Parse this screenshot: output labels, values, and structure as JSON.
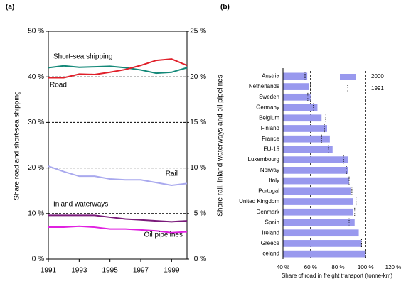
{
  "chart_data": [
    {
      "type": "line",
      "panel_label": "(a)",
      "x": [
        1991,
        1992,
        1993,
        1994,
        1995,
        1996,
        1997,
        1998,
        1999,
        2000
      ],
      "xlim": [
        1991,
        2000
      ],
      "xticks": [
        1991,
        1993,
        1995,
        1997,
        1999
      ],
      "ylim": [
        0,
        50
      ],
      "yticks": [
        {
          "value": 0,
          "label": "0 %"
        },
        {
          "value": 10,
          "label": "10 %"
        },
        {
          "value": 20,
          "label": "20 %"
        },
        {
          "value": 30,
          "label": "30 %"
        },
        {
          "value": 40,
          "label": "40 %"
        },
        {
          "value": 50,
          "label": "50 %"
        }
      ],
      "y2lim": [
        0,
        25
      ],
      "y2ticks": [
        {
          "value": 0,
          "label": "0 %"
        },
        {
          "value": 5,
          "label": "5 %"
        },
        {
          "value": 10,
          "label": "10 %"
        },
        {
          "value": 15,
          "label": "15 %"
        },
        {
          "value": 20,
          "label": "20 %"
        },
        {
          "value": 25,
          "label": "25 %"
        }
      ],
      "ylabel": "Share road and short-sea shipping",
      "y2label": "Share rail, inland waterways and oil pipelines",
      "grid": true,
      "series": [
        {
          "name": "Short-sea shipping",
          "color": "#138878",
          "values": [
            42.0,
            42.4,
            42.1,
            42.2,
            42.3,
            42.0,
            41.5,
            40.8,
            41.0,
            42.0
          ]
        },
        {
          "name": "Road",
          "color": "#e0202a",
          "values": [
            39.8,
            39.8,
            40.6,
            40.5,
            41.0,
            41.6,
            42.5,
            43.6,
            43.9,
            42.5
          ]
        },
        {
          "name": "Rail",
          "color": "#a9a9ee",
          "axis": "y2",
          "values": [
            10.2,
            9.6,
            9.1,
            9.1,
            8.8,
            8.7,
            8.7,
            8.4,
            8.1,
            8.3
          ]
        },
        {
          "name": "Inland waterways",
          "color": "#7a1a7a",
          "axis": "y2",
          "values": [
            4.8,
            4.8,
            4.8,
            4.8,
            4.6,
            4.4,
            4.3,
            4.2,
            4.1,
            4.2
          ]
        },
        {
          "name": "Oil pipelines",
          "color": "#e020e0",
          "axis": "y2",
          "values": [
            3.5,
            3.5,
            3.6,
            3.5,
            3.3,
            3.3,
            3.2,
            3.1,
            2.9,
            3.0
          ]
        }
      ]
    },
    {
      "type": "barh",
      "panel_label": "(b)",
      "categories": [
        "Austria",
        "Netherlands",
        "Sweden",
        "Germany",
        "Belgium",
        "Finland",
        "France",
        "EU-15",
        "Luxembourg",
        "Norway",
        "Italy",
        "Portugal",
        "United Kingdom",
        "Denmark",
        "Spain",
        "Ireland",
        "Greece",
        "Iceland"
      ],
      "xlim": [
        40,
        120
      ],
      "xticks": [
        {
          "value": 40,
          "label": "40 %"
        },
        {
          "value": 60,
          "label": "60 %"
        },
        {
          "value": 80,
          "label": "80 %"
        },
        {
          "value": 100,
          "label": "100 %"
        },
        {
          "value": 120,
          "label": "120 %"
        }
      ],
      "xlabel": "Share of road in freight transport (tonne-km)",
      "grid": true,
      "legend": "upper right",
      "series": [
        {
          "name": "2000",
          "color": "#9999ee",
          "values": [
            57.6,
            59,
            60,
            65,
            68,
            72,
            74,
            76,
            87,
            87,
            88,
            89,
            91,
            91,
            92,
            95,
            97,
            100
          ]
        },
        {
          "name": "1991",
          "color": "#000000",
          "values": [
            56,
            60,
            58,
            62,
            71,
            70,
            68,
            73,
            84,
            86,
            88,
            90,
            93,
            92,
            88,
            96,
            97,
            100
          ]
        }
      ]
    }
  ]
}
